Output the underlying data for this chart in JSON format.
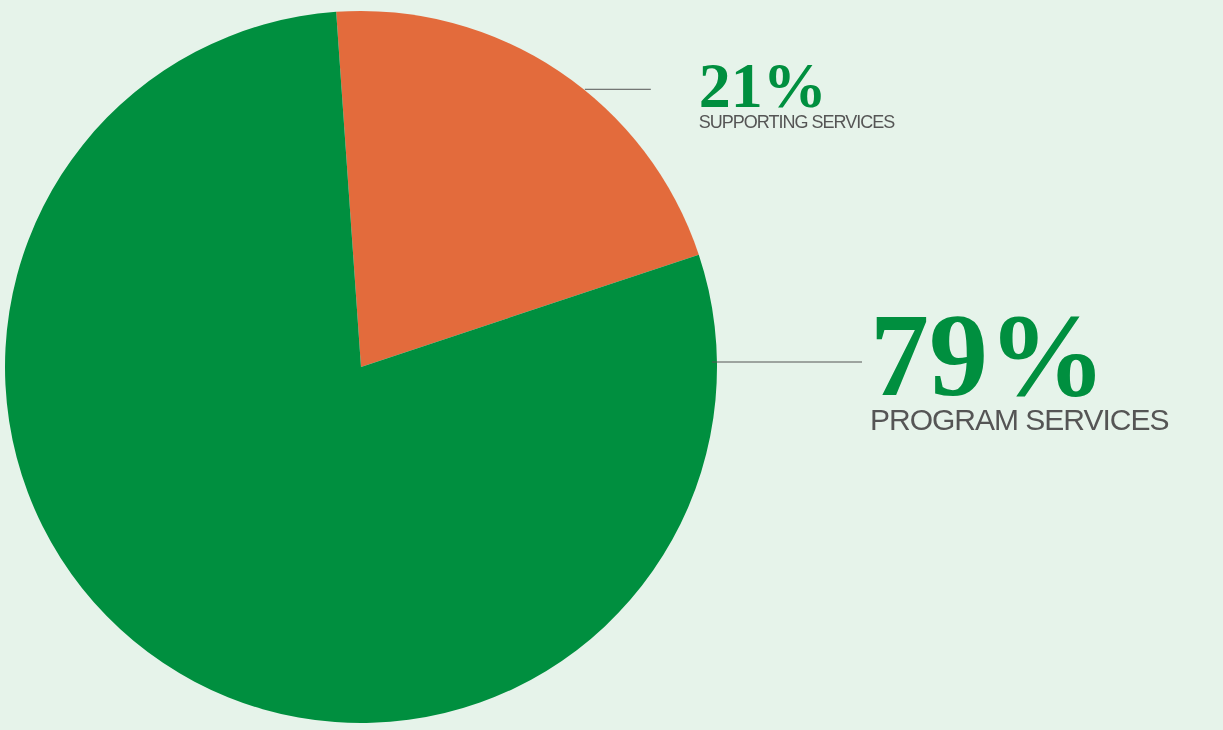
{
  "chart_data": {
    "type": "pie",
    "categories": [
      "SUPPORTING SERVICES",
      "PROGRAM SERVICES"
    ],
    "values": [
      21,
      79
    ],
    "colors": [
      "#e36b3c",
      "#008f3f"
    ],
    "value_labels": [
      "21%",
      "79%"
    ]
  }
}
